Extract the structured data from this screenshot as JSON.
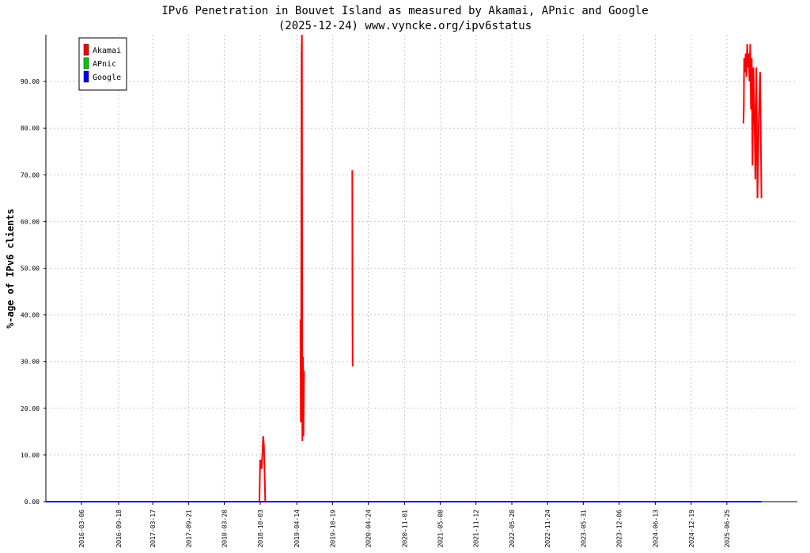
{
  "chart_data": {
    "type": "line",
    "title": "IPv6 Penetration in Bouvet Island as measured by Akamai, APnic and Google",
    "subtitle": "(2025-12-24) www.vyncke.org/ipv6status",
    "y_label": "%-age of IPv6 clients",
    "x": [
      "2015-09-01",
      "2018-09-29",
      "2018-10-03",
      "2018-10-05",
      "2018-10-08",
      "2018-10-11",
      "2018-10-19",
      "2018-10-23",
      "2018-10-30",
      "2018-11-01",
      "2019-05-03",
      "2019-05-05",
      "2019-05-07",
      "2019-05-09",
      "2019-05-11",
      "2019-05-13",
      "2019-05-17",
      "2019-05-19",
      "2019-05-22",
      "2019-05-24",
      "2020-01-31",
      "2020-02-01",
      "2020-02-02",
      "2020-02-04",
      "2025-09-20",
      "2025-09-22",
      "2025-09-24",
      "2025-09-28",
      "2025-10-02",
      "2025-10-06",
      "2025-10-10",
      "2025-10-14",
      "2025-10-18",
      "2025-10-22",
      "2025-10-26",
      "2025-10-30",
      "2025-11-03",
      "2025-11-07",
      "2025-11-12",
      "2025-11-17",
      "2025-11-22",
      "2025-11-27",
      "2025-12-03",
      "2025-12-10",
      "2025-12-17",
      "2025-12-24"
    ],
    "series": [
      {
        "name": "Akamai",
        "color": "#ff0000",
        "values": [
          null,
          0,
          9,
          7.5,
          9,
          7,
          14,
          12,
          0,
          null,
          39,
          17,
          36,
          96,
          100,
          13,
          31,
          14,
          28,
          null,
          71,
          40,
          29,
          null,
          81,
          84,
          95,
          92,
          96,
          91,
          98,
          93,
          96,
          90,
          98,
          84,
          95,
          72,
          93,
          83,
          69,
          93,
          65,
          82,
          92,
          65
        ]
      },
      {
        "name": "APnic",
        "color": "#00cc00",
        "values": [
          0,
          0,
          0,
          0,
          0,
          0,
          0,
          0,
          0,
          0,
          0,
          0,
          0,
          0,
          0,
          0,
          0,
          0,
          0,
          0,
          0,
          0,
          0,
          0,
          0,
          0,
          0,
          0,
          0,
          0,
          0,
          0,
          0,
          0,
          0,
          0,
          0,
          0,
          0,
          0,
          0,
          0,
          0,
          0,
          0,
          0
        ]
      },
      {
        "name": "Google",
        "color": "#0000ff",
        "values": [
          0,
          0,
          0,
          0,
          0,
          0,
          0,
          0,
          0,
          0,
          0,
          0,
          0,
          0,
          0,
          0,
          0,
          0,
          0,
          0,
          0,
          0,
          0,
          0,
          0,
          0,
          0,
          0,
          0,
          0,
          0,
          0,
          0,
          0,
          0,
          0,
          0,
          0,
          0,
          0,
          0,
          0,
          0,
          0,
          0,
          0
        ]
      }
    ],
    "xlim": [
      "2015-09-01",
      "2026-07-01"
    ],
    "xticks": [
      "2016-03-06",
      "2016-09-18",
      "2017-03-17",
      "2017-09-21",
      "2018-03-28",
      "2018-10-03",
      "2019-04-14",
      "2019-10-19",
      "2020-04-24",
      "2020-11-01",
      "2021-05-08",
      "2021-11-12",
      "2022-05-20",
      "2022-11-24",
      "2023-05-31",
      "2023-12-06",
      "2024-06-13",
      "2024-12-19",
      "2025-06-25"
    ],
    "ylim": [
      0,
      100
    ],
    "yticks": [
      {
        "value": 0,
        "label": "0.00"
      },
      {
        "value": 10,
        "label": "10.00"
      },
      {
        "value": 20,
        "label": "20.00"
      },
      {
        "value": 30,
        "label": "30.00"
      },
      {
        "value": 40,
        "label": "40.00"
      },
      {
        "value": 50,
        "label": "50.00"
      },
      {
        "value": 60,
        "label": "60.00"
      },
      {
        "value": 70,
        "label": "70.00"
      },
      {
        "value": 80,
        "label": "80.00"
      },
      {
        "value": 90,
        "label": "90.00"
      }
    ],
    "grid": true,
    "legend": "top-left"
  }
}
